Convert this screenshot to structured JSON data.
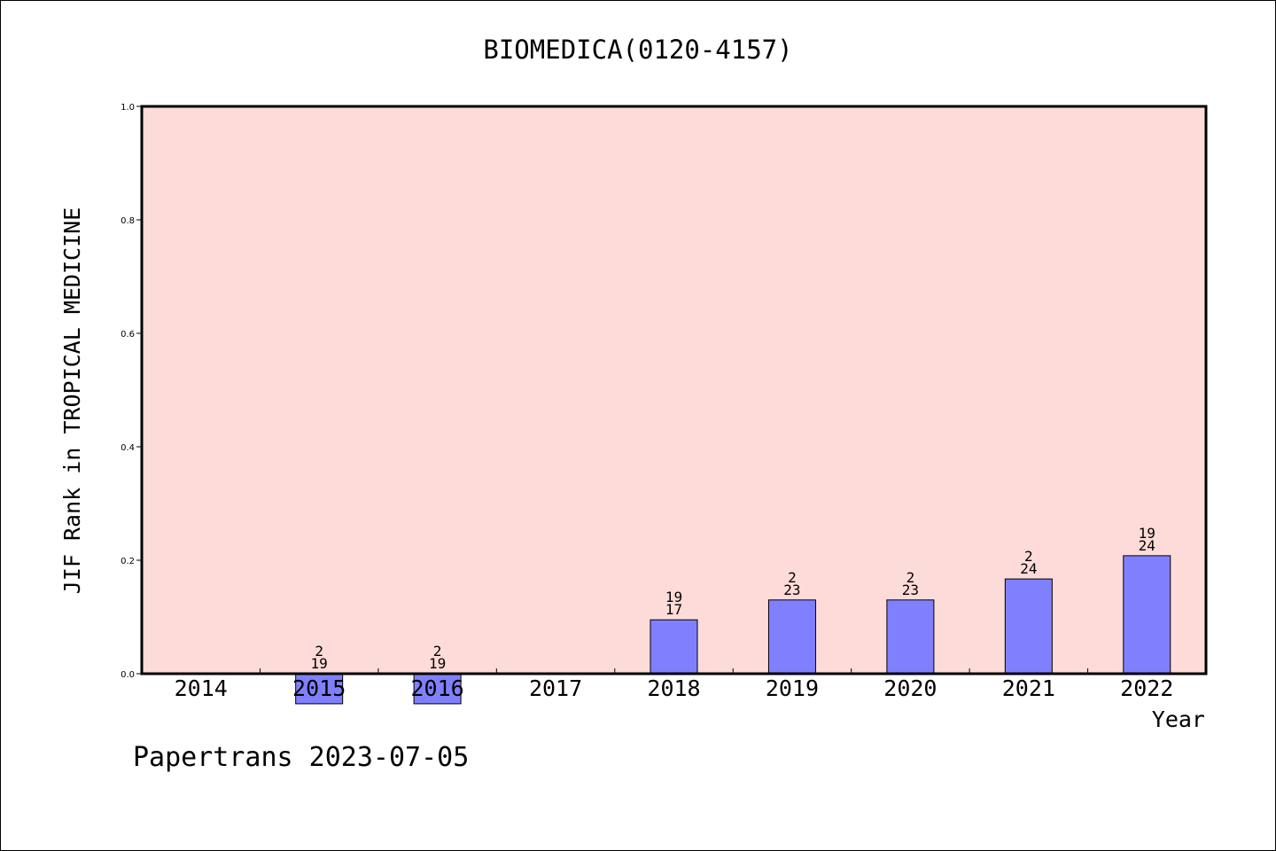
{
  "chart_data": {
    "type": "bar",
    "title": "BIOMEDICA(0120-4157)",
    "xlabel": "Year",
    "ylabel": "JIF Rank in TROPICAL MEDICINE",
    "categories": [
      "2014",
      "2015",
      "2016",
      "2017",
      "2018",
      "2019",
      "2020",
      "2021",
      "2022"
    ],
    "values": [
      null,
      -0.053,
      -0.053,
      null,
      0.095,
      0.13,
      0.13,
      0.167,
      0.208
    ],
    "bar_labels": [
      null,
      [
        "2",
        "19"
      ],
      [
        "2",
        "19"
      ],
      null,
      [
        "19",
        "17"
      ],
      [
        "2",
        "23"
      ],
      [
        "2",
        "23"
      ],
      [
        "2",
        "24"
      ],
      [
        "19",
        "24"
      ]
    ],
    "ylim": [
      0,
      1.0
    ],
    "yticks": [
      "0.0",
      "0.2",
      "0.4",
      "0.6",
      "0.8",
      "1.0"
    ],
    "grid": false,
    "legend": "none"
  },
  "footer": "Papertrans 2023-07-05",
  "colors": {
    "plot_background": "#fcdbd8",
    "bar_fill": "#8080ff",
    "bar_stroke": "#000000",
    "frame": "#000000",
    "text": "#000000"
  }
}
